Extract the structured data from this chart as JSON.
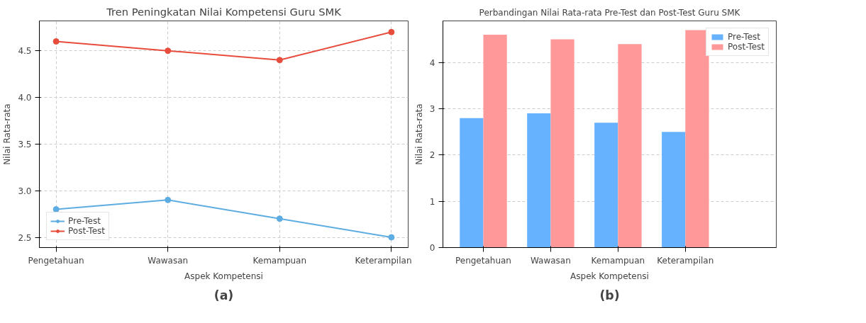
{
  "chart_data": [
    {
      "type": "line",
      "title": "Tren Peningkatan Nilai Kompetensi Guru SMK",
      "xlabel": "Aspek Kompetensi",
      "ylabel": "Nilai Rata-rata",
      "categories": [
        "Pengetahuan",
        "Wawasan",
        "Kemampuan",
        "Keterampilan"
      ],
      "series": [
        {
          "name": "Pre-Test",
          "color": "#5dade2",
          "values": [
            2.8,
            2.9,
            2.7,
            2.5
          ]
        },
        {
          "name": "Post-Test",
          "color": "#e74c3c",
          "values": [
            4.6,
            4.5,
            4.4,
            4.7
          ]
        }
      ],
      "ylim": [
        2.39,
        4.82
      ],
      "yticks": [
        2.5,
        {
          "value": 3,
          "label": "3.0"
        },
        3.5,
        {
          "value": 4,
          "label": "4.0"
        },
        4.5
      ],
      "grid": true,
      "legend": "bottom left",
      "marker": "circle",
      "annotations": [
        "(a)"
      ]
    },
    {
      "type": "bar",
      "title": "Perbandingan Nilai Rata-rata Pre-Test dan Post-Test Guru SMK",
      "xlabel": "Aspek Kompetensi",
      "ylabel": "Nilai Rata-rata",
      "categories": [
        "Pengetahuan",
        "Wawasan",
        "Kemampuan",
        "Keterampilan"
      ],
      "series": [
        {
          "name": "Pre-Test",
          "color": "#66b2ff",
          "values": [
            2.8,
            2.9,
            2.7,
            2.5
          ]
        },
        {
          "name": "Post-Test",
          "color": "#ff9999",
          "values": [
            4.6,
            4.5,
            4.4,
            4.7
          ]
        }
      ],
      "ylim": [
        0,
        4.9
      ],
      "yticks": [
        0,
        1,
        2,
        3,
        4
      ],
      "grid": "y",
      "legend": "top right",
      "annotations": [
        "(b)"
      ]
    }
  ]
}
